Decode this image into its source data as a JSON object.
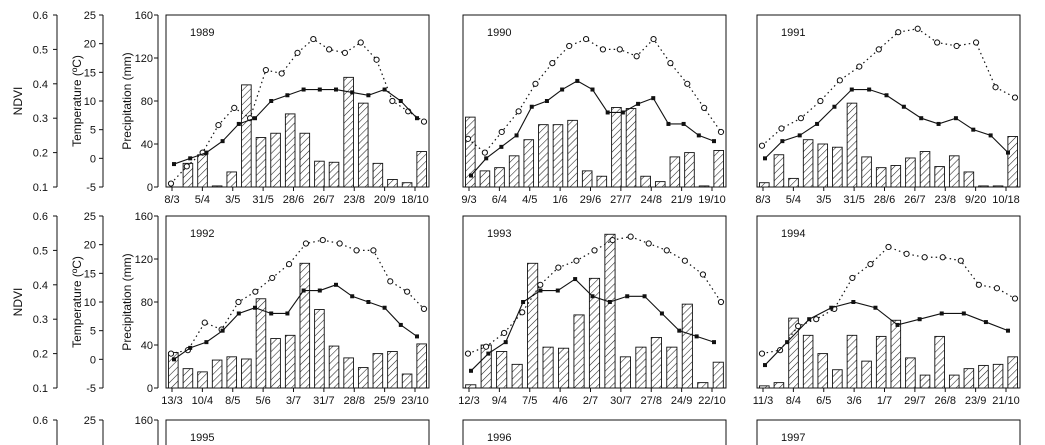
{
  "chart_data": {
    "type": "bar",
    "axes": {
      "ndvi": {
        "label": "NDVI",
        "range": [
          0.1,
          0.6
        ],
        "ticks": [
          "0.1",
          "0.2",
          "0.3",
          "0.4",
          "0.5",
          "0.6"
        ]
      },
      "temperature": {
        "label": "Temperature (ºC)",
        "range": [
          -5,
          25
        ],
        "ticks": [
          "-5",
          "0",
          "5",
          "10",
          "15",
          "20",
          "25"
        ]
      },
      "precipitation": {
        "label": "Precipitation (mm)",
        "range": [
          0,
          160
        ],
        "ticks": [
          "0",
          "40",
          "80",
          "120",
          "160"
        ]
      }
    },
    "panels": [
      {
        "year": "1989",
        "xlabels": [
          "8/3",
          "5/4",
          "3/5",
          "31/5",
          "28/6",
          "26/7",
          "23/8",
          "20/9",
          "18/10"
        ],
        "precip": [
          null,
          22,
          30,
          1,
          14,
          95,
          46,
          50,
          68,
          50,
          24,
          23,
          102,
          78,
          22,
          7,
          4,
          33
        ],
        "ndvi": [
          0.11,
          0.16,
          0.2,
          0.28,
          0.33,
          0.3,
          0.44,
          0.43,
          0.49,
          0.53,
          0.5,
          0.49,
          0.52,
          0.47,
          0.35,
          0.32,
          0.29
        ],
        "temp": [
          -1,
          0,
          1,
          3,
          6,
          7,
          10,
          11,
          12,
          12,
          12,
          11.5,
          11,
          12,
          10,
          7
        ]
      },
      {
        "year": "1990",
        "xlabels": [
          "9/3",
          "6/4",
          "4/5",
          "1/6",
          "29/6",
          "27/7",
          "24/8",
          "21/9",
          "19/10"
        ],
        "precip": [
          65,
          15,
          18,
          29,
          44,
          58,
          58,
          62,
          15,
          10,
          74,
          73,
          10,
          5,
          28,
          32,
          1,
          34
        ],
        "ndvi": [
          0.24,
          0.2,
          0.26,
          0.32,
          0.4,
          0.46,
          0.51,
          0.53,
          0.5,
          0.5,
          0.48,
          0.53,
          0.46,
          0.4,
          0.33,
          0.26
        ],
        "temp": [
          -3,
          0,
          2,
          4,
          9,
          10,
          12,
          13.5,
          12,
          8,
          8,
          9.5,
          10.5,
          6,
          6,
          4,
          3
        ]
      },
      {
        "year": "1991",
        "xlabels": [
          "8/3",
          "5/4",
          "3/5",
          "31/5",
          "28/6",
          "26/7",
          "23/8",
          "9/20",
          "10/18"
        ],
        "precip": [
          4,
          30,
          8,
          44,
          40,
          37,
          78,
          28,
          18,
          20,
          27,
          33,
          19,
          29,
          14,
          1,
          1,
          47
        ],
        "ndvi": [
          0.22,
          0.27,
          0.3,
          0.35,
          0.41,
          0.45,
          0.5,
          0.55,
          0.56,
          0.52,
          0.51,
          0.52,
          0.39,
          0.36
        ],
        "temp": [
          0,
          3,
          4,
          6,
          9,
          12,
          12,
          11,
          9,
          7,
          6,
          7,
          5,
          4,
          1
        ]
      },
      {
        "year": "1992",
        "xlabels": [
          "13/3",
          "10/4",
          "8/5",
          "5/6",
          "3/7",
          "31/7",
          "28/8",
          "25/9",
          "23/10"
        ],
        "precip": [
          33,
          18,
          15,
          26,
          29,
          27,
          83,
          46,
          49,
          116,
          73,
          39,
          28,
          19,
          32,
          34,
          13,
          41
        ],
        "ndvi": [
          0.2,
          0.21,
          0.29,
          0.27,
          0.35,
          0.38,
          0.42,
          0.46,
          0.52,
          0.53,
          0.52,
          0.5,
          0.5,
          0.41,
          0.38,
          0.33
        ],
        "temp": [
          0,
          2,
          3,
          5,
          8,
          9,
          8,
          8,
          12,
          12,
          13,
          11,
          10,
          9,
          6,
          4
        ]
      },
      {
        "year": "1993",
        "xlabels": [
          "12/3",
          "9/4",
          "7/5",
          "4/6",
          "2/7",
          "30/7",
          "27/8",
          "24/9",
          "22/10"
        ],
        "precip": [
          3,
          40,
          34,
          22,
          116,
          38,
          37,
          68,
          102,
          143,
          29,
          38,
          47,
          38,
          78,
          5,
          24
        ],
        "ndvi": [
          0.2,
          0.22,
          0.26,
          0.32,
          0.4,
          0.45,
          0.47,
          0.5,
          0.53,
          0.54,
          0.52,
          0.5,
          0.47,
          0.43,
          0.35
        ],
        "temp": [
          -2,
          1,
          3,
          10,
          12,
          12,
          14,
          11,
          10,
          11,
          11,
          8,
          5,
          4,
          3
        ]
      },
      {
        "year": "1994",
        "xlabels": [
          "11/3",
          "8/4",
          "6/5",
          "3/6",
          "1/7",
          "29/7",
          "26/8",
          "23/9",
          "21/10"
        ],
        "precip": [
          2,
          5,
          65,
          49,
          32,
          17,
          49,
          25,
          48,
          63,
          28,
          12,
          48,
          12,
          18,
          21,
          22,
          29
        ],
        "ndvi": [
          0.2,
          0.21,
          0.28,
          0.3,
          0.33,
          0.42,
          0.46,
          0.51,
          0.49,
          0.48,
          0.48,
          0.47,
          0.4,
          0.39,
          0.36
        ],
        "temp": [
          -1,
          3,
          7,
          9,
          10,
          9,
          6,
          7,
          8,
          8,
          6.5,
          5
        ]
      },
      {
        "year": "1995"
      },
      {
        "year": "1996"
      },
      {
        "year": "1997"
      }
    ]
  }
}
